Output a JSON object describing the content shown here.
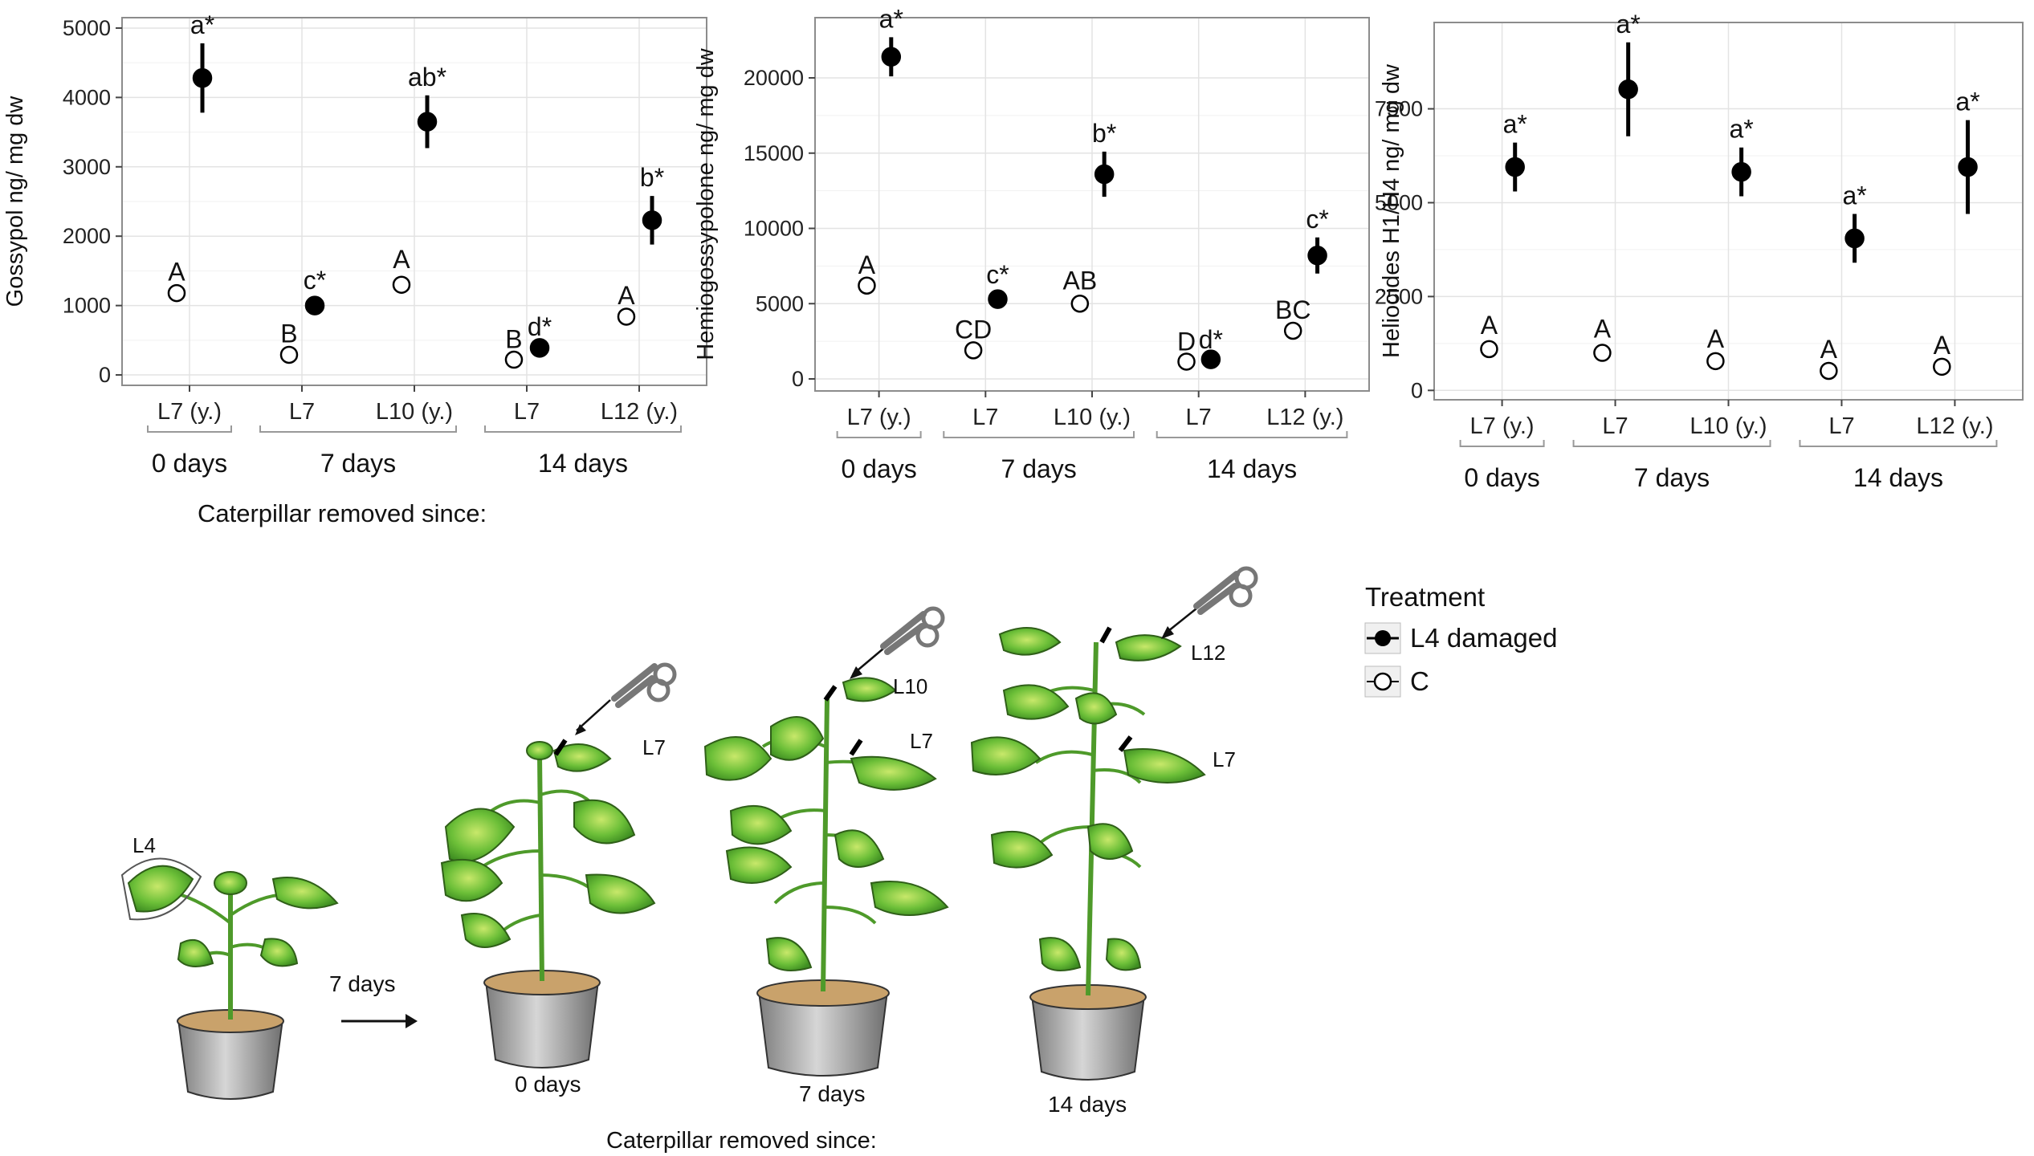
{
  "charts_meta": {
    "treatment_colors": {
      "damaged": "#000000",
      "control": "#ffffff"
    },
    "grid_color": "#e3e3e3",
    "panel_border_color": "#8c8c8c",
    "bracket_color": "#999999"
  },
  "chart_data": [
    {
      "type": "scatter",
      "title": "",
      "ylabel": "Gossypol ng/ mg dw",
      "ylim": [
        -150,
        5150
      ],
      "yticks": [
        0,
        1000,
        2000,
        3000,
        4000,
        5000
      ],
      "tick_labels": [
        "L7 (y.)",
        "L7",
        "L10 (y.)",
        "L7",
        "L12 (y.)"
      ],
      "groups": [
        {
          "label": "0 days",
          "span": [
            1,
            1
          ]
        },
        {
          "label": "7 days",
          "span": [
            2,
            3
          ]
        },
        {
          "label": "14 days",
          "span": [
            4,
            5
          ]
        }
      ],
      "xlabel": "Caterpillar removed since:",
      "grid": true,
      "series": [
        {
          "name": "C",
          "filled": false,
          "x": [
            1,
            2,
            3,
            4,
            5
          ],
          "y": [
            1180,
            290,
            1300,
            220,
            840
          ],
          "err": [
            40,
            40,
            100,
            30,
            40
          ],
          "letters": [
            "A",
            "B",
            "A",
            "B",
            "A"
          ]
        },
        {
          "name": "L4 damaged",
          "filled": true,
          "x": [
            1,
            2,
            3,
            4,
            5
          ],
          "y": [
            4280,
            1000,
            3650,
            390,
            2230
          ],
          "err": [
            500,
            100,
            380,
            40,
            350
          ],
          "letters": [
            "a*",
            "c*",
            "ab*",
            "d*",
            "b*"
          ]
        }
      ]
    },
    {
      "type": "scatter",
      "title": "",
      "ylabel": "Hemiogossypolone ng/ mg dw",
      "ylim": [
        -800,
        24000
      ],
      "yticks": [
        0,
        5000,
        10000,
        15000,
        20000
      ],
      "tick_labels": [
        "L7 (y.)",
        "L7",
        "L10 (y.)",
        "L7",
        "L12 (y.)"
      ],
      "groups": [
        {
          "label": "0 days",
          "span": [
            1,
            1
          ]
        },
        {
          "label": "7 days",
          "span": [
            2,
            3
          ]
        },
        {
          "label": "14 days",
          "span": [
            4,
            5
          ]
        }
      ],
      "xlabel": "",
      "grid": true,
      "series": [
        {
          "name": "C",
          "filled": false,
          "x": [
            1,
            2,
            3,
            4,
            5
          ],
          "y": [
            6200,
            1900,
            5000,
            1150,
            3200
          ],
          "err": [
            150,
            150,
            300,
            100,
            150
          ],
          "letters": [
            "A",
            "CD",
            "AB",
            "D",
            "BC"
          ]
        },
        {
          "name": "L4 damaged",
          "filled": true,
          "x": [
            1,
            2,
            3,
            4,
            5
          ],
          "y": [
            21400,
            5300,
            13600,
            1300,
            8200
          ],
          "err": [
            1300,
            400,
            1500,
            100,
            1200
          ],
          "letters": [
            "a*",
            "c*",
            "b*",
            "d*",
            "c*"
          ]
        }
      ]
    },
    {
      "type": "scatter",
      "title": "",
      "ylabel": "Heliocides H1/H4 ng/ mg dw",
      "ylim": [
        -250,
        9800
      ],
      "yticks": [
        0,
        2500,
        5000,
        7500
      ],
      "tick_labels": [
        "L7 (y.)",
        "L7",
        "L10 (y.)",
        "L7",
        "L12 (y.)"
      ],
      "groups": [
        {
          "label": "0 days",
          "span": [
            1,
            1
          ]
        },
        {
          "label": "7 days",
          "span": [
            2,
            3
          ]
        },
        {
          "label": "14 days",
          "span": [
            4,
            5
          ]
        }
      ],
      "xlabel": "",
      "grid": true,
      "series": [
        {
          "name": "C",
          "filled": false,
          "x": [
            1,
            2,
            3,
            4,
            5
          ],
          "y": [
            1100,
            1000,
            780,
            520,
            630
          ],
          "err": [
            150,
            150,
            100,
            80,
            80
          ],
          "letters": [
            "A",
            "A",
            "A",
            "A",
            "A"
          ]
        },
        {
          "name": "L4 damaged",
          "filled": true,
          "x": [
            1,
            2,
            3,
            4,
            5
          ],
          "y": [
            5950,
            8020,
            5820,
            4050,
            5950
          ],
          "err": [
            650,
            1250,
            650,
            650,
            1250
          ],
          "letters": [
            "a*",
            "a*",
            "a*",
            "a*",
            "a*"
          ]
        }
      ]
    }
  ],
  "legend": {
    "title": "Treatment",
    "items": [
      {
        "label": "L4 damaged",
        "filled": true
      },
      {
        "label": "C",
        "filled": false
      }
    ]
  },
  "illustration": {
    "leaf_labels": [
      "L4",
      "L7",
      "L10",
      "L7",
      "L12",
      "L7"
    ],
    "arrow_label": "7 days",
    "plant_labels": [
      "0 days",
      "7 days",
      "14 days"
    ],
    "xlabel": "Caterpillar removed since:",
    "leaf_color": "#6fbf3a",
    "stem_color": "#4e9a2a",
    "pot_color": "#a8a8a8",
    "soil_color": "#c9a26b"
  }
}
